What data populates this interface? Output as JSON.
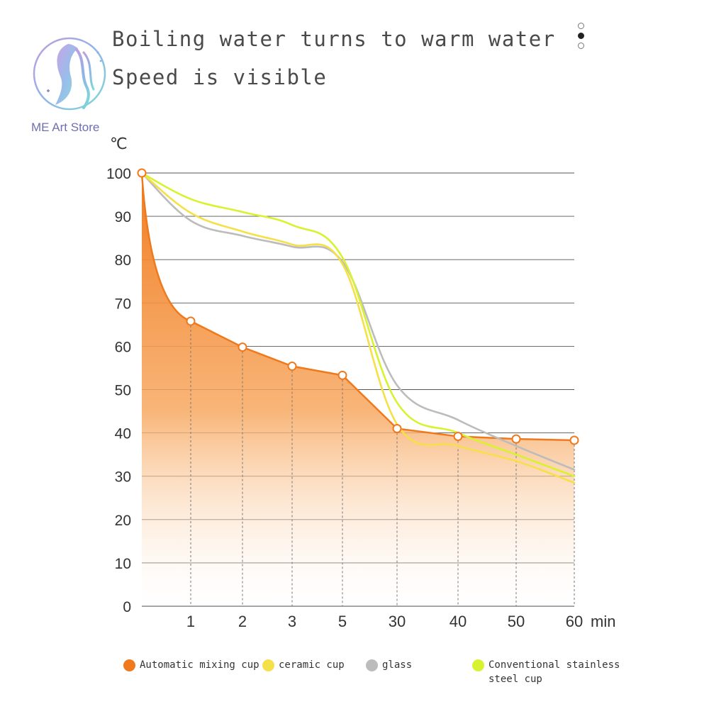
{
  "title_lines": [
    "Boiling water turns to warm water",
    "Speed is visible"
  ],
  "logo_text": "ME Art Store",
  "pager": {
    "count": 3,
    "active": 1
  },
  "chart_data": {
    "type": "line",
    "ylabel": "℃",
    "xlabel": "min",
    "categories": [
      "",
      "1",
      "2",
      "3",
      "5",
      "30",
      "40",
      "50",
      "60"
    ],
    "yticks": [
      0,
      10,
      20,
      30,
      40,
      50,
      60,
      70,
      80,
      90,
      100
    ],
    "ylim": [
      0,
      100
    ],
    "grid": true,
    "legend_position": "bottom",
    "series": [
      {
        "name": "Automatic mixing cup",
        "color": "#ef7a1e",
        "style": "area-with-markers",
        "values": [
          100,
          65.8,
          59.8,
          55.4,
          53.3,
          41.0,
          39.2,
          38.6,
          38.3
        ]
      },
      {
        "name": "ceramic cup",
        "color": "#f5e04a",
        "style": "smooth-line",
        "values": [
          100,
          90.8,
          86.5,
          83.5,
          79.0,
          42.0,
          37.0,
          33.5,
          28.5
        ]
      },
      {
        "name": "glass",
        "color": "#bcbcbc",
        "style": "smooth-line",
        "values": [
          100,
          89.0,
          85.5,
          83.0,
          79.5,
          51.0,
          43.0,
          37.0,
          31.5
        ]
      },
      {
        "name": "Conventional stainless steel cup",
        "color": "#d9f230",
        "style": "smooth-line",
        "values": [
          100,
          94.0,
          91.0,
          88.0,
          80.5,
          47.0,
          40.0,
          35.0,
          30.0
        ]
      }
    ]
  }
}
